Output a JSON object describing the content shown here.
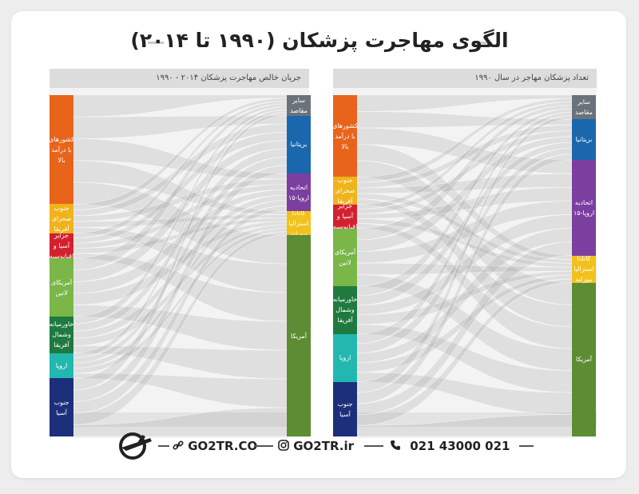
{
  "title": "الگوی مهاجرت پزشکان (۱۹۹۰ تا ۲۰۱۴)",
  "left_panel": {
    "header": "جریان خالص مهاجرت پزشکان ۲۰۱۴ - ۱۹۹۰",
    "sources": [
      {
        "label": "کشورهای\nبا درآمد\nبالا",
        "color": "#e8641b",
        "share": 0.3
      },
      {
        "label": "جنوب\nصحرای\nآفریقا",
        "color": "#f1b31c",
        "share": 0.08
      },
      {
        "label": "جزایر\nآسیا و\nاقیانوسیه",
        "color": "#d3202f",
        "share": 0.07
      },
      {
        "label": "آمریکای\nلاتین",
        "color": "#7ab648",
        "share": 0.16
      },
      {
        "label": "خاورمیانه\nوشمال\nآفریقا",
        "color": "#1f7a3f",
        "share": 0.1
      },
      {
        "label": "اروپا",
        "color": "#22b8b0",
        "share": 0.07
      },
      {
        "label": "جنوب\nآسیا",
        "color": "#1c2f7a",
        "share": 0.16
      }
    ],
    "targets": [
      {
        "label": "سایر\nمقاصد",
        "color": "#6b737a",
        "share": 0.06
      },
      {
        "label": "بریتانیا",
        "color": "#1a67ae",
        "share": 0.17
      },
      {
        "label": "اتحادیه\nاروپا-۱۵",
        "color": "#7b3fa0",
        "share": 0.11
      },
      {
        "label": "کانادا\nاسترالیا\nنیوزلند",
        "color": "#f2c11c",
        "share": 0.07
      },
      {
        "label": "آمریکا",
        "color": "#5c8c34",
        "share": 0.59
      }
    ]
  },
  "right_panel": {
    "header": "تعداد پزشکان مهاجر در سال ۱۹۹۰",
    "sources": [
      {
        "label": "کشورهای\nبا درآمد\nبالا",
        "color": "#e8641b",
        "share": 0.24
      },
      {
        "label": "جنوب\nصحرای\nآفریقا",
        "color": "#f1b31c",
        "share": 0.08
      },
      {
        "label": "جزایر\nآسیا و\nاقیانوسیه",
        "color": "#d3202f",
        "share": 0.07
      },
      {
        "label": "آمریکای\nلاتین",
        "color": "#7ab648",
        "share": 0.17
      },
      {
        "label": "خاورمیانه\nوشمال\nآفریقا",
        "color": "#1f7a3f",
        "share": 0.14
      },
      {
        "label": "اروپا",
        "color": "#22b8b0",
        "share": 0.14
      },
      {
        "label": "جنوب\nآسیا",
        "color": "#1c2f7a",
        "share": 0.16
      }
    ],
    "targets": [
      {
        "label": "سایر\nمقاصد",
        "color": "#6b737a",
        "share": 0.07
      },
      {
        "label": "بریتانیا",
        "color": "#1a67ae",
        "share": 0.12
      },
      {
        "label": "اتحادیه\nاروپا-۱۵",
        "color": "#7b3fa0",
        "share": 0.28
      },
      {
        "label": "کانادا\nاسترالیا\nنیوزلند",
        "color": "#f2c11c",
        "share": 0.08
      },
      {
        "label": "آمریکا",
        "color": "#5c8c34",
        "share": 0.45
      }
    ]
  },
  "footer": {
    "website1": "GO2TR.CO",
    "website2": "GO2TR.ir",
    "phone": "021 43000 021"
  }
}
